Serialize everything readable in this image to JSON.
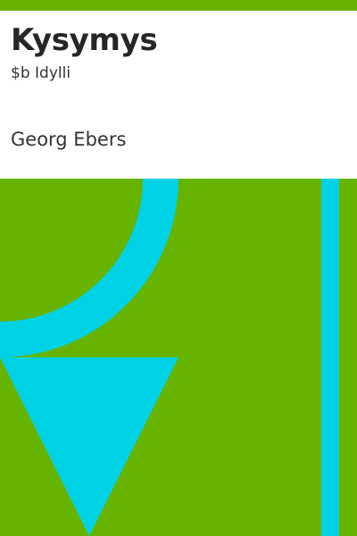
{
  "cover": {
    "title": "Kysymys",
    "subtitle": "$b Idylli",
    "author": "Georg Ebers"
  },
  "colors": {
    "background_green": "#66b400",
    "shape_cyan": "#00d2e6",
    "panel_white": "#ffffff",
    "text_dark": "#262626"
  }
}
